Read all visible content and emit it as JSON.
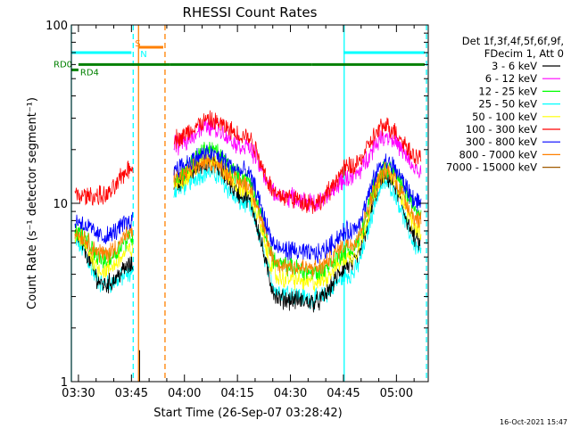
{
  "chart_data": {
    "type": "line",
    "title": "RHESSI Count Rates",
    "xlabel": "Start Time (26-Sep-07 03:28:42)",
    "ylabel": "Count Rate (s⁻¹ detector segment⁻¹)",
    "yscale": "log",
    "ylim": [
      1,
      100
    ],
    "xlim_minutes_after_0328": [
      0,
      101
    ],
    "x_ticks": [
      {
        "label": "03:30",
        "minutes": 2
      },
      {
        "label": "03:45",
        "minutes": 17
      },
      {
        "label": "04:00",
        "minutes": 32
      },
      {
        "label": "04:15",
        "minutes": 47
      },
      {
        "label": "04:30",
        "minutes": 62
      },
      {
        "label": "04:45",
        "minutes": 77
      },
      {
        "label": "05:00",
        "minutes": 92
      }
    ],
    "y_ticks": [
      {
        "label": "1",
        "value": 1
      },
      {
        "label": "10",
        "value": 10
      },
      {
        "label": "100",
        "value": 100
      }
    ],
    "legend_header": [
      "Det 1f,3f,4f,5f,6f,9f,",
      "FDecim 1, Att 0"
    ],
    "series": [
      {
        "name": "3 - 6 keV",
        "color": "#000000",
        "segments": [
          {
            "t0": 1,
            "t1": 17.5,
            "v": [
              6.5,
              3.5,
              4.5
            ]
          },
          {
            "t0": 29,
            "t1": 99,
            "v": [
              13,
              17,
              11,
              2.9,
              2.8,
              4.5,
              14,
              6
            ]
          }
        ]
      },
      {
        "name": "6 - 12 keV",
        "color": "#ff00ff",
        "segments": [
          {
            "t0": 29,
            "t1": 99,
            "v": [
              21,
              27,
              21,
              11,
              10,
              14,
              24,
              15
            ]
          }
        ]
      },
      {
        "name": "12 - 25 keV",
        "color": "#00ff00",
        "segments": [
          {
            "t0": 1,
            "t1": 17.5,
            "v": [
              7,
              4.8,
              6.5
            ]
          },
          {
            "t0": 29,
            "t1": 99,
            "v": [
              14,
              20,
              14,
              4.5,
              4.1,
              5.5,
              16,
              9
            ]
          }
        ]
      },
      {
        "name": "25 - 50 keV",
        "color": "#00ffff",
        "segments": [
          {
            "t0": 1,
            "t1": 17.5,
            "v": [
              6,
              3.5,
              4
            ]
          },
          {
            "t0": 29,
            "t1": 99,
            "v": [
              12,
              15,
              10,
              3.2,
              2.9,
              4,
              13,
              5.5
            ]
          }
        ]
      },
      {
        "name": "50 - 100 keV",
        "color": "#ffff00",
        "segments": [
          {
            "t0": 1,
            "t1": 17.5,
            "v": [
              6.5,
              4.2,
              5.5
            ]
          },
          {
            "t0": 29,
            "t1": 99,
            "v": [
              13,
              18,
              12,
              3.8,
              3.6,
              5,
              15,
              7
            ]
          }
        ]
      },
      {
        "name": "100 - 300 keV",
        "color": "#ff0000",
        "segments": [
          {
            "t0": 1,
            "t1": 17.5,
            "v": [
              11,
              11,
              16
            ]
          },
          {
            "t0": 29,
            "t1": 99,
            "v": [
              23,
              29,
              24,
              11,
              10,
              16,
              27,
              18
            ]
          }
        ]
      },
      {
        "name": "300 - 800 keV",
        "color": "#0000ff",
        "segments": [
          {
            "t0": 1,
            "t1": 17.5,
            "v": [
              8,
              6.5,
              8
            ]
          },
          {
            "t0": 29,
            "t1": 99,
            "v": [
              16,
              19,
              15,
              5.5,
              5.2,
              7,
              17,
              10
            ]
          }
        ]
      },
      {
        "name": "800 - 7000 keV",
        "color": "#ff8000",
        "segments": [
          {
            "t0": 1,
            "t1": 17.5,
            "v": [
              6.8,
              5.2,
              6.8
            ]
          },
          {
            "t0": 29,
            "t1": 99,
            "v": [
              14,
              17,
              13,
              4.5,
              4.3,
              6,
              15,
              8
            ]
          }
        ]
      },
      {
        "name": "7000 - 15000 keV",
        "color": "#a05a00",
        "segments": []
      }
    ],
    "state_bars": [
      {
        "label": "RD0",
        "color": "#008000",
        "value": 60,
        "ranges": [
          [
            2,
            28
          ],
          [
            28,
            51
          ],
          [
            51,
            68
          ],
          [
            68,
            100
          ]
        ]
      },
      {
        "label": "RD4",
        "color": "#008000",
        "value": 56,
        "ranges": [
          [
            0,
            2
          ]
        ]
      }
    ],
    "saa_bars": [
      {
        "color": "#00ffff",
        "value": 70,
        "ranges": [
          [
            0,
            17
          ],
          [
            77,
            100
          ]
        ]
      },
      {
        "label": "S",
        "color": "#ff8000",
        "value": 75,
        "ranges": [
          [
            19,
            26
          ]
        ]
      }
    ],
    "night_label": "N",
    "vertical_markers": [
      {
        "minutes": 0,
        "color": "#00ffff",
        "style": "solid"
      },
      {
        "minutes": 17.5,
        "color": "#00ffff",
        "style": "dashed"
      },
      {
        "minutes": 19,
        "color": "#ff8000",
        "style": "solid"
      },
      {
        "minutes": 19.3,
        "color": "#000000",
        "style": "solid"
      },
      {
        "minutes": 26.5,
        "color": "#ff8000",
        "style": "dashed"
      },
      {
        "minutes": 77.2,
        "color": "#00ffff",
        "style": "solid"
      },
      {
        "minutes": 100.5,
        "color": "#00ffff",
        "style": "dashed"
      }
    ]
  },
  "footer": {
    "timestamp": "16-Oct-2021 15:47"
  }
}
